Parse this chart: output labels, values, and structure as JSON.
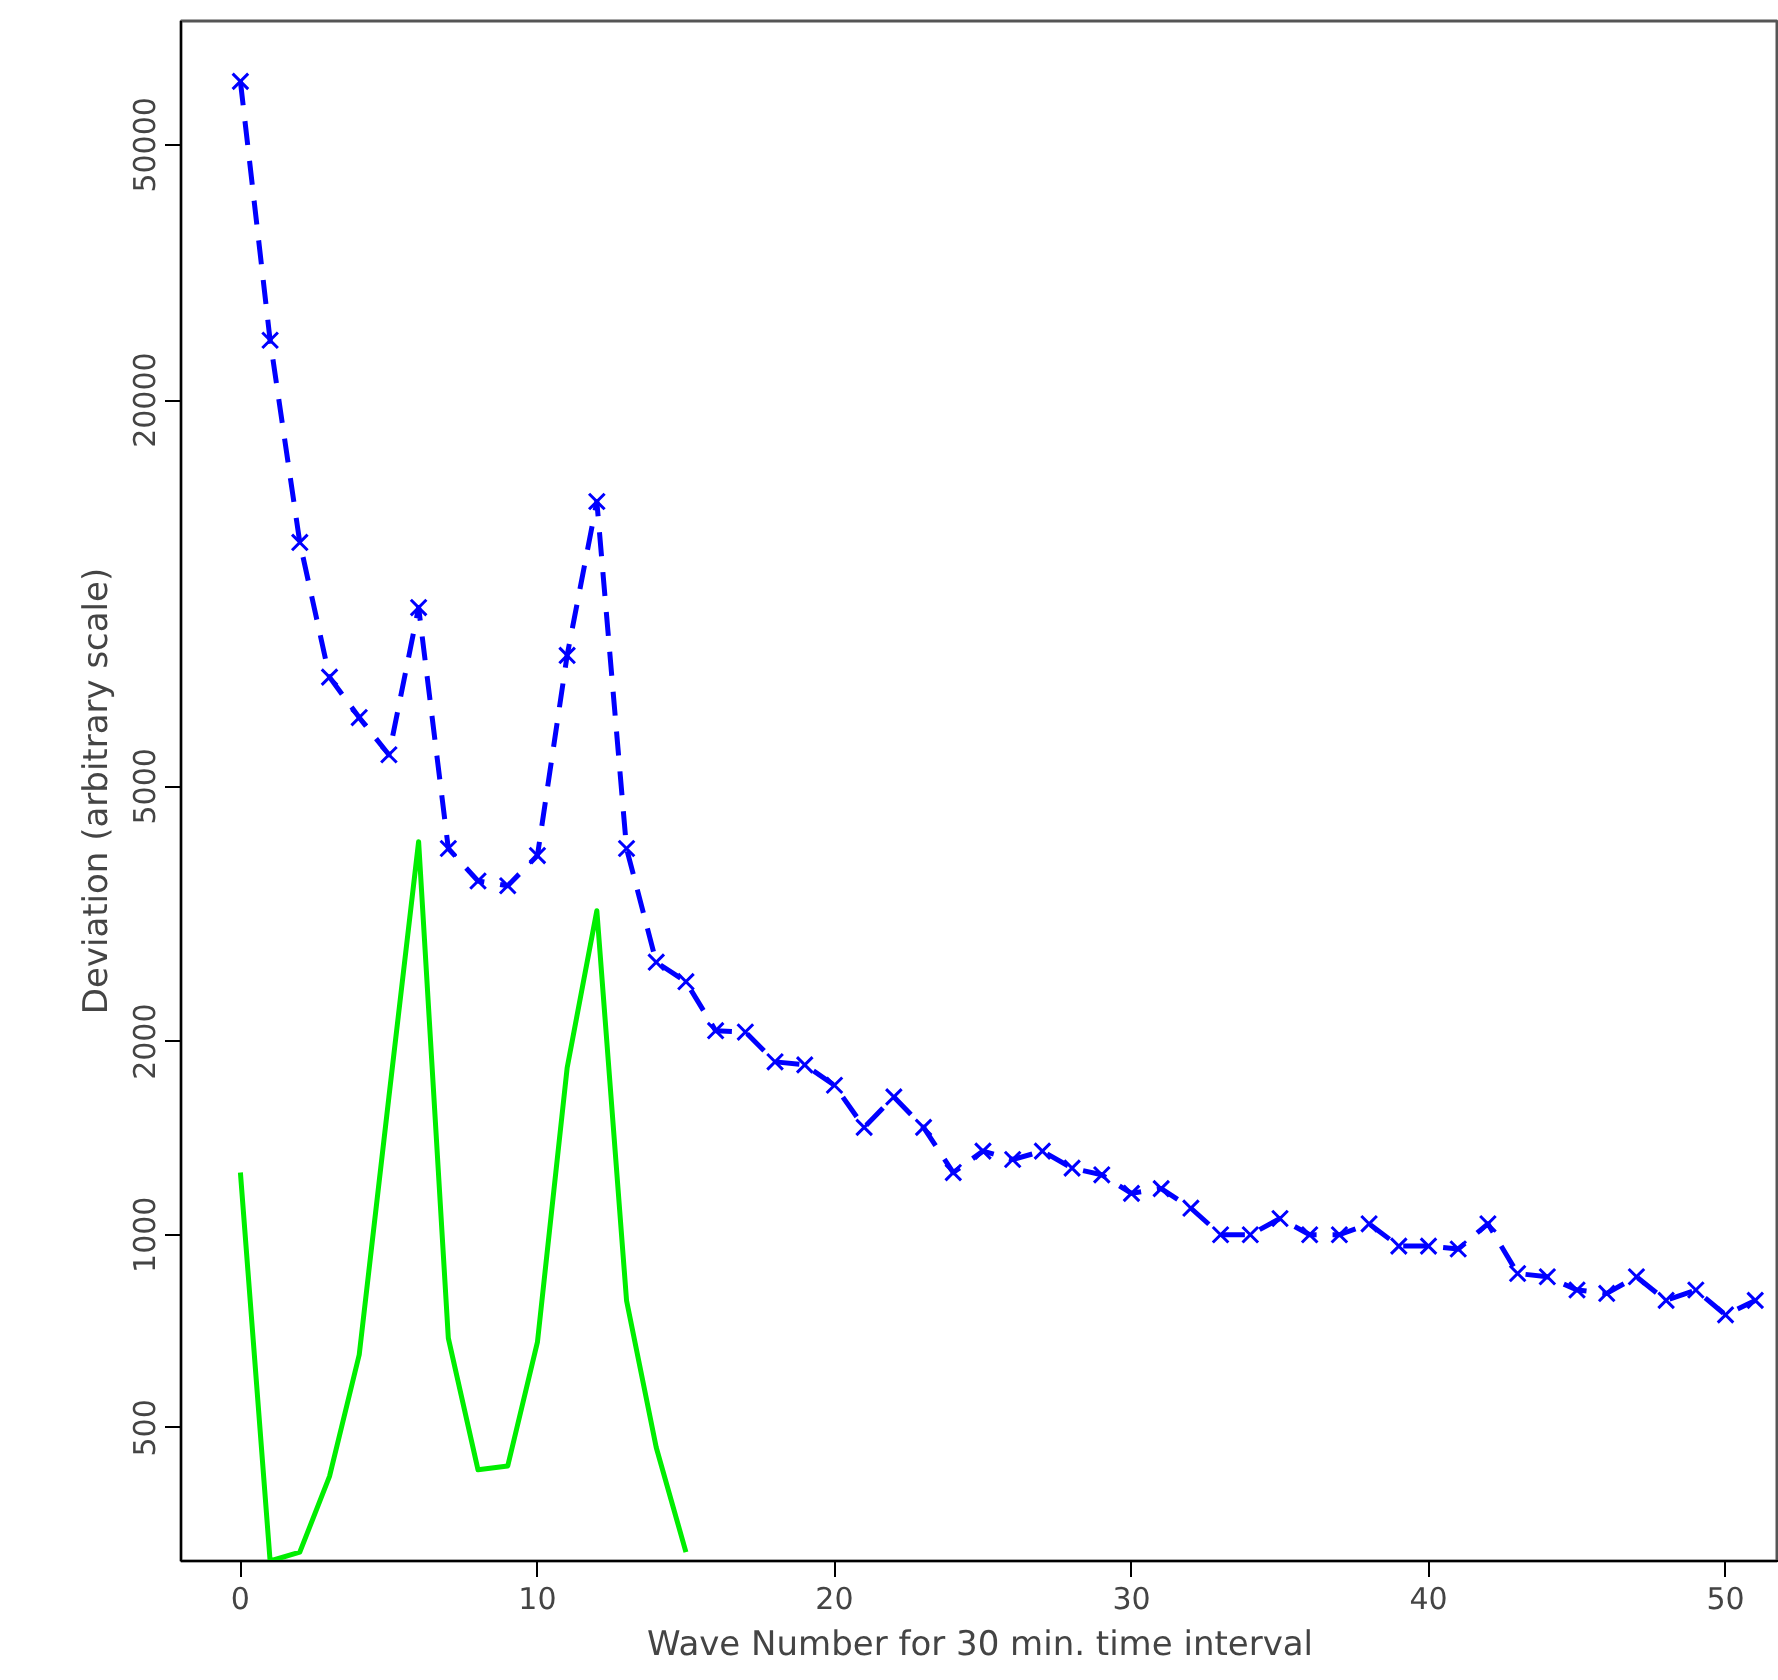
{
  "chart_data": {
    "type": "line",
    "xlabel": "Wave Number for 30 min. time interval",
    "ylabel": "Deviation (arbitrary scale)",
    "x": [
      0,
      1,
      2,
      3,
      4,
      5,
      6,
      7,
      8,
      9,
      10,
      11,
      12,
      13,
      14,
      15,
      16,
      17,
      18,
      19,
      20,
      21,
      22,
      23,
      24,
      25,
      26,
      27,
      28,
      29,
      30,
      31,
      32,
      33,
      34,
      35,
      36,
      37,
      38,
      39,
      40,
      41,
      42,
      43,
      44,
      45,
      46,
      47,
      48,
      49,
      50,
      51
    ],
    "series": [
      {
        "color": "#0000ff",
        "marker": "cross",
        "line_style": "dashed",
        "values": [
          62800,
          24800,
          12000,
          7400,
          6400,
          5600,
          9500,
          4000,
          3560,
          3500,
          3900,
          8000,
          13900,
          4000,
          2660,
          2480,
          2080,
          2070,
          1860,
          1840,
          1710,
          1470,
          1640,
          1470,
          1250,
          1350,
          1310,
          1350,
          1270,
          1240,
          1160,
          1180,
          1100,
          1000,
          1000,
          1060,
          1000,
          1000,
          1040,
          960,
          960,
          950,
          1040,
          870,
          860,
          820,
          810,
          860,
          790,
          820,
          750,
          790
        ]
      },
      {
        "color": "#00ee00",
        "marker": "none",
        "line_style": "solid",
        "values": [
          1250,
          310,
          320,
          420,
          650,
          1640,
          4100,
          690,
          430,
          436,
          680,
          1820,
          3200,
          790,
          466,
          320,
          null,
          null,
          null,
          null,
          null,
          null,
          null,
          null,
          null,
          null,
          null,
          null,
          null,
          null,
          null,
          null,
          null,
          null,
          null,
          null,
          null,
          null,
          null,
          null,
          null,
          null,
          null,
          null,
          null,
          null,
          null,
          null,
          null,
          null,
          null,
          null
        ]
      }
    ],
    "log": "y",
    "xlim": [
      -2,
      51.8
    ],
    "ylim": [
      310,
      78000
    ],
    "xticks": [
      0,
      10,
      20,
      30,
      40,
      50
    ],
    "yticks": [
      500,
      1000,
      2000,
      5000,
      20000,
      50000
    ],
    "grid": false
  }
}
